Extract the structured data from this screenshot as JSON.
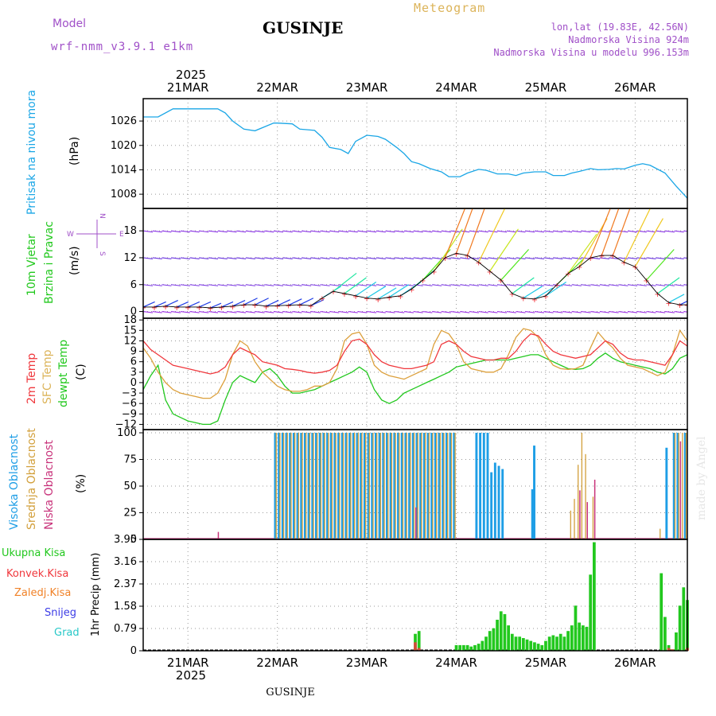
{
  "header": {
    "model_label": "Model",
    "model_name": "wrf-nmm_v3.9.1 e1km",
    "station": "GUSINJE",
    "product": "Meteogram",
    "coords": "lon,lat (19.83E, 42.56N)",
    "elevation": "Nadmorska Visina 924m",
    "model_elevation": "Nadmorska Visina u modelu 996.153m",
    "footer_station": "GUSINJE",
    "watermark": "made by Angel"
  },
  "colors": {
    "pressure": "#1aa6e6",
    "temp2m": "#f0373c",
    "sfc_temp": "#dca03c",
    "dewpt": "#22c81e",
    "cloud_high": "#1e9ee6",
    "cloud_mid": "#d2a03c",
    "cloud_low": "#c8327a",
    "rain_total": "#22c81e",
    "rain_conv": "#f0373c",
    "freezing_rain": "#f08228",
    "snow": "#3c3ce6",
    "hail": "#28c8c8",
    "header_purple": "#a050c8",
    "header_gold": "#dcb45a"
  },
  "chart_data": [
    {
      "id": "time_axis",
      "type": "table",
      "year": "2025",
      "day_labels": [
        "21MAR",
        "22MAR",
        "23MAR",
        "24MAR",
        "25MAR",
        "26MAR"
      ],
      "x_range_hours": [
        0,
        146
      ]
    },
    {
      "id": "pressure",
      "type": "line",
      "ylabel_rotated": "Pritisak na nivou mora",
      "unit": "(hPa)",
      "yticks": [
        1008,
        1014,
        1020,
        1026
      ],
      "ylim": [
        1004.5,
        1031.5
      ],
      "x": [
        0,
        4,
        8,
        10,
        14,
        20,
        22,
        24,
        27,
        30,
        35,
        36,
        40,
        42,
        46,
        48,
        50,
        53,
        55,
        57,
        60,
        63,
        65,
        68,
        70,
        72,
        74,
        77,
        80,
        82,
        85,
        87,
        90,
        92,
        95,
        98,
        100,
        102,
        105,
        108,
        110,
        113,
        115,
        117,
        120,
        122,
        125,
        127,
        129,
        132,
        134,
        136,
        140,
        143,
        146
      ],
      "series": [
        {
          "values": [
            1027,
            1027,
            1029,
            1029,
            1029,
            1029,
            1028,
            1026,
            1024,
            1023.6,
            1025.5,
            1025.5,
            1025.3,
            1024,
            1023.7,
            1022,
            1019.5,
            1019,
            1018,
            1021,
            1022.5,
            1022.2,
            1021.5,
            1019.5,
            1018,
            1016,
            1015.5,
            1014.3,
            1013.5,
            1012.3,
            1012.3,
            1013.2,
            1014.1,
            1013.9,
            1013,
            1013,
            1012.6,
            1013.2,
            1013.5,
            1013.5,
            1012.6,
            1012.6,
            1013.2,
            1013.6,
            1014.3,
            1014,
            1014.1,
            1014.3,
            1014.2,
            1015.1,
            1015.5,
            1015.1,
            1013.2,
            1010,
            1007
          ]
        }
      ]
    },
    {
      "id": "wind",
      "type": "scatter",
      "ylabel_rotated_1": "10m Vjetar",
      "ylabel_rotated_2": "Brzina i Pravac",
      "unit": "(m/s)",
      "compass": {
        "n": "N",
        "s": "S",
        "e": "E",
        "w": "W"
      },
      "yticks": [
        0,
        6,
        12,
        18
      ],
      "ylim": [
        -1.5,
        23
      ],
      "x": [
        0,
        3,
        6,
        9,
        12,
        15,
        18,
        21,
        24,
        27,
        30,
        33,
        36,
        39,
        42,
        45,
        48,
        51,
        54,
        57,
        60,
        63,
        66,
        69,
        72,
        75,
        78,
        81,
        84,
        87,
        90,
        93,
        96,
        99,
        102,
        105,
        108,
        111,
        114,
        117,
        120,
        123,
        126,
        129,
        132,
        135,
        138,
        141,
        144,
        146
      ],
      "speed": [
        1,
        1,
        1.2,
        1,
        1,
        1,
        0.8,
        1,
        1.2,
        1.5,
        1.5,
        1.2,
        1.3,
        1.4,
        1.5,
        1.3,
        3,
        4.5,
        4,
        3.5,
        3,
        2.8,
        3.2,
        3.5,
        5,
        7,
        9,
        12,
        13,
        12.5,
        11,
        9,
        7,
        4,
        3,
        2.8,
        3.5,
        6,
        8.5,
        10,
        12,
        12.5,
        12.5,
        11,
        10,
        7,
        4,
        2,
        1.5,
        1.5
      ]
    },
    {
      "id": "temperature",
      "type": "line",
      "ylabel_rotated_1": "2m Temp",
      "ylabel_rotated_2": "SFC Temp",
      "ylabel_rotated_3": "dewpt Temp",
      "unit": "(C)",
      "yticks": [
        -12,
        -9,
        -6,
        -3,
        0,
        3,
        6,
        9,
        12,
        15,
        18
      ],
      "ylim": [
        -13.5,
        18.5
      ],
      "x": [
        0,
        2,
        4,
        6,
        8,
        10,
        12,
        14,
        16,
        18,
        20,
        22,
        24,
        26,
        28,
        30,
        32,
        34,
        36,
        38,
        40,
        42,
        44,
        46,
        48,
        50,
        52,
        54,
        56,
        58,
        60,
        62,
        64,
        66,
        68,
        70,
        72,
        74,
        76,
        78,
        80,
        82,
        84,
        86,
        88,
        90,
        92,
        94,
        96,
        98,
        100,
        102,
        104,
        106,
        108,
        110,
        112,
        114,
        116,
        118,
        120,
        122,
        124,
        126,
        128,
        130,
        132,
        134,
        136,
        138,
        140,
        142,
        144,
        146
      ],
      "series": [
        {
          "values": [
            12,
            9.5,
            8,
            6.5,
            5,
            4.5,
            4,
            3.5,
            3,
            2.5,
            3,
            4.5,
            8,
            10,
            9,
            8,
            6,
            5.5,
            5,
            4,
            3.8,
            3.5,
            3,
            2.7,
            3,
            3.5,
            5,
            9,
            12,
            12.5,
            11,
            8,
            6,
            5,
            4.5,
            4,
            4,
            4.5,
            5,
            6,
            11,
            12,
            11,
            9,
            7.5,
            7,
            6.5,
            6.5,
            7,
            7,
            9,
            12,
            14,
            13.5,
            11,
            9,
            8,
            7.5,
            7,
            7.5,
            8,
            10,
            12,
            11,
            8.5,
            7,
            6.5,
            6.5,
            6,
            5.5,
            5,
            8,
            12,
            10.5
          ]
        },
        {
          "values": [
            10,
            7,
            3,
            0,
            -2,
            -3,
            -3.5,
            -4,
            -4.5,
            -4.5,
            -3,
            1,
            8,
            12,
            10.5,
            6,
            3,
            1,
            -1,
            -2,
            -2.5,
            -2.5,
            -2,
            -1,
            -1,
            0,
            4,
            12,
            14,
            14.5,
            11,
            5,
            3,
            2,
            1.5,
            1,
            2,
            3,
            4,
            11,
            15,
            14,
            11,
            6,
            4,
            3.5,
            3,
            3,
            4,
            8,
            13,
            15.5,
            15,
            13,
            8,
            5,
            4,
            3.8,
            4,
            5,
            10,
            14.5,
            12,
            10,
            7,
            5,
            4.5,
            4,
            3,
            2,
            3,
            8,
            15,
            12
          ]
        },
        {
          "values": [
            -2,
            2,
            5,
            -5,
            -9,
            -10,
            -11,
            -11.5,
            -12,
            -12,
            -11,
            -5,
            0,
            2,
            1,
            0,
            3,
            4,
            2,
            -1,
            -3,
            -3,
            -2.5,
            -2,
            -1,
            0,
            1,
            2,
            3,
            4.5,
            3,
            -2,
            -5,
            -6,
            -5,
            -3,
            -2,
            -1,
            0,
            1,
            2,
            3,
            4.5,
            5,
            5.5,
            6,
            6.5,
            6.5,
            6.5,
            6.5,
            7,
            7.5,
            8,
            8,
            7,
            6,
            5,
            4,
            3.8,
            4,
            5,
            7,
            8.5,
            7,
            6,
            5.5,
            5,
            4.5,
            4,
            3,
            2.5,
            4,
            7,
            8
          ]
        }
      ]
    },
    {
      "id": "clouds",
      "type": "bar",
      "ylabel_rotated_1": "Visoka Oblacnost",
      "ylabel_rotated_2": "Srednja Oblacnost",
      "ylabel_rotated_3": "Niska Oblacnost",
      "unit": "(%)",
      "yticks": [
        0,
        25,
        50,
        75,
        100
      ],
      "ylim": [
        0,
        103
      ],
      "high_intervals_hours": [
        [
          35,
          84,
          100
        ],
        [
          89,
          93,
          100
        ],
        [
          93,
          94,
          63
        ],
        [
          94,
          95,
          72
        ],
        [
          95,
          96,
          69
        ],
        [
          96,
          97,
          66
        ],
        [
          104,
          104.5,
          47
        ],
        [
          104.5,
          105.5,
          88
        ],
        [
          140,
          140.8,
          86
        ],
        [
          142,
          144,
          100
        ],
        [
          145,
          146,
          100
        ]
      ],
      "mid_intervals_hours": [
        [
          35,
          84,
          100
        ],
        [
          114,
          115,
          27
        ],
        [
          115,
          116,
          38
        ],
        [
          116,
          117,
          70
        ],
        [
          117,
          118,
          100
        ],
        [
          118,
          119,
          80
        ],
        [
          120,
          121,
          40
        ],
        [
          138,
          139,
          10
        ],
        [
          142,
          146,
          100
        ]
      ],
      "low_spikes_hours": [
        [
          20,
          7
        ],
        [
          73,
          30
        ],
        [
          117,
          46
        ],
        [
          119,
          35
        ],
        [
          121,
          56
        ],
        [
          144,
          92
        ]
      ]
    },
    {
      "id": "precipitation",
      "type": "bar",
      "labels": [
        "Ukupna  Kisa",
        "Konvek.Kisa",
        "Zaledj.Kisa",
        "Snijeg",
        "Grad"
      ],
      "ylabel_rotated": "1hr Precip (mm)",
      "yticks": [
        0,
        0.79,
        1.58,
        2.37,
        3.16,
        3.95
      ],
      "ylim": [
        0,
        3.95
      ],
      "x": [
        73,
        74,
        84,
        85,
        86,
        87,
        88,
        89,
        90,
        91,
        92,
        93,
        94,
        95,
        96,
        97,
        98,
        99,
        100,
        101,
        102,
        103,
        104,
        105,
        106,
        107,
        108,
        109,
        110,
        111,
        112,
        113,
        114,
        115,
        116,
        117,
        118,
        119,
        120,
        121,
        139,
        140,
        141,
        142,
        143,
        144,
        145,
        146
      ],
      "series": [
        {
          "values": [
            0.6,
            0.7,
            0.2,
            0.2,
            0.2,
            0.2,
            0.15,
            0.2,
            0.25,
            0.35,
            0.5,
            0.7,
            0.8,
            1.1,
            1.4,
            1.3,
            0.9,
            0.6,
            0.5,
            0.5,
            0.45,
            0.4,
            0.35,
            0.3,
            0.25,
            0.2,
            0.35,
            0.5,
            0.55,
            0.5,
            0.6,
            0.5,
            0.7,
            0.9,
            1.6,
            1.0,
            0.9,
            0.85,
            2.7,
            3.85,
            2.75,
            1.2,
            0.2,
            0.05,
            0.65,
            1.6,
            2.25,
            1.8
          ]
        }
      ],
      "conv_values": [
        0.3,
        0.1,
        0,
        0,
        0,
        0,
        0,
        0,
        0,
        0,
        0,
        0,
        0,
        0,
        0,
        0,
        0,
        0,
        0,
        0,
        0,
        0,
        0,
        0,
        0,
        0,
        0,
        0,
        0,
        0,
        0,
        0,
        0,
        0,
        0,
        0,
        0,
        0,
        0,
        0,
        0,
        0,
        0.1,
        0.05,
        0,
        0,
        0,
        0.1
      ]
    }
  ]
}
